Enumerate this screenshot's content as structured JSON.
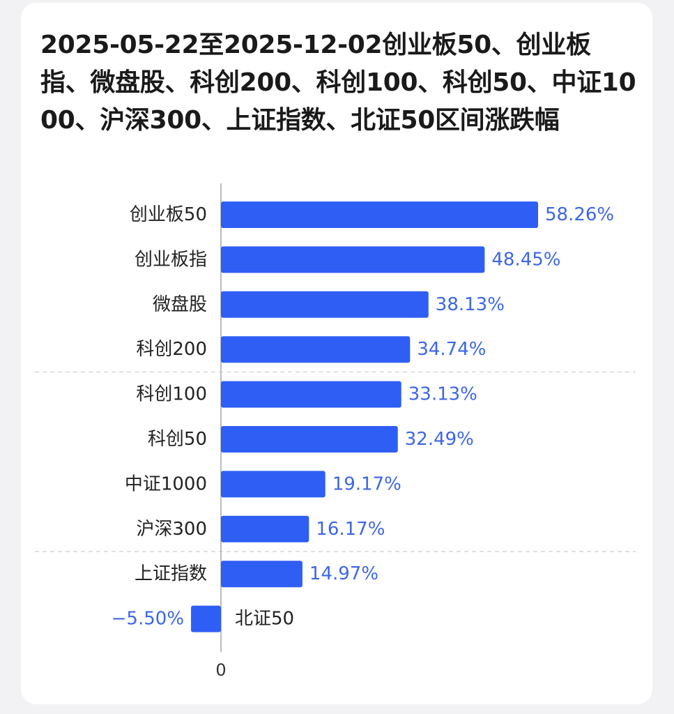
{
  "colors": {
    "bar": "#2f5ef5",
    "value_text": "#3d66e8",
    "axis": "#bbbbbb",
    "grid": "#d6d6d6"
  },
  "chart_data": {
    "type": "bar",
    "orientation": "horizontal",
    "title": "2025-05-22至2025-12-02创业板50、创业板指、微盘股、科创200、科创100、科创50、中证1000、沪深300、上证指数、北证50区间涨跌幅",
    "categories": [
      "创业板50",
      "创业板指",
      "微盘股",
      "科创200",
      "科创100",
      "科创50",
      "中证1000",
      "沪深300",
      "上证指数",
      "北证50"
    ],
    "values": [
      58.26,
      48.45,
      38.13,
      34.74,
      33.13,
      32.49,
      19.17,
      16.17,
      14.97,
      -5.5
    ],
    "value_labels": [
      "58.26%",
      "48.45%",
      "38.13%",
      "34.74%",
      "33.13%",
      "32.49%",
      "19.17%",
      "16.17%",
      "14.97%",
      "−5.50%"
    ],
    "x_ticks": [
      "0"
    ],
    "unit": "%",
    "grid": "dashed horizontal separators",
    "legend": "none"
  }
}
